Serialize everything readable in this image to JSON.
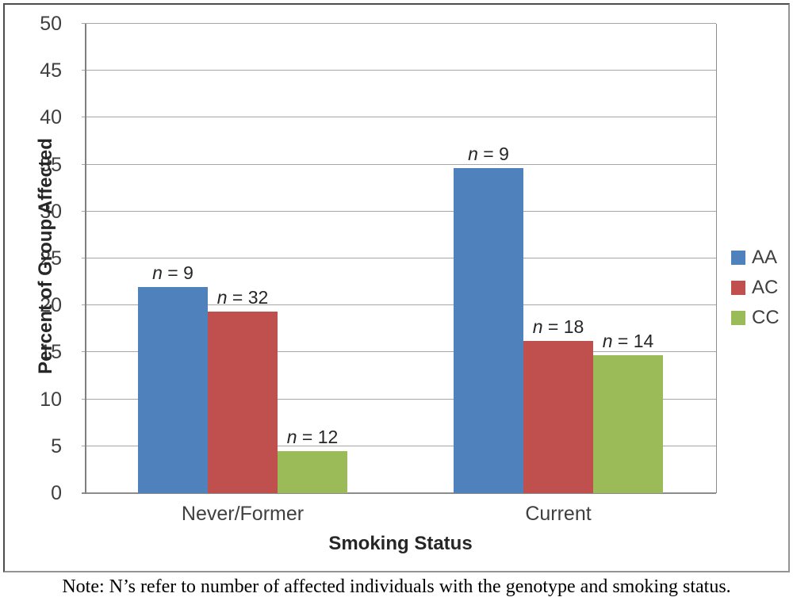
{
  "note": "Note: N’s refer to number of affected individuals with the genotype and smoking status.",
  "chart_data": {
    "type": "bar",
    "title": "",
    "xlabel": "Smoking Status",
    "ylabel": "Percent of Group Affected",
    "categories": [
      "Never/Former",
      "Current"
    ],
    "series": [
      {
        "name": "AA",
        "color": "#4F81BD",
        "values": [
          22.0,
          34.6
        ],
        "n_labels": [
          "n = 9",
          "n = 9"
        ]
      },
      {
        "name": "AC",
        "color": "#C0504D",
        "values": [
          19.3,
          16.2
        ],
        "n_labels": [
          "n = 32",
          "n = 18"
        ]
      },
      {
        "name": "CC",
        "color": "#9BBB59",
        "values": [
          4.5,
          14.7
        ],
        "n_labels": [
          "n = 12",
          "n = 14"
        ]
      }
    ],
    "ylim": [
      0,
      50
    ],
    "ytick_step": 5,
    "grid": true,
    "legend_position": "right",
    "gridline_color": "#a6a6a6",
    "axis_color": "#808080"
  }
}
